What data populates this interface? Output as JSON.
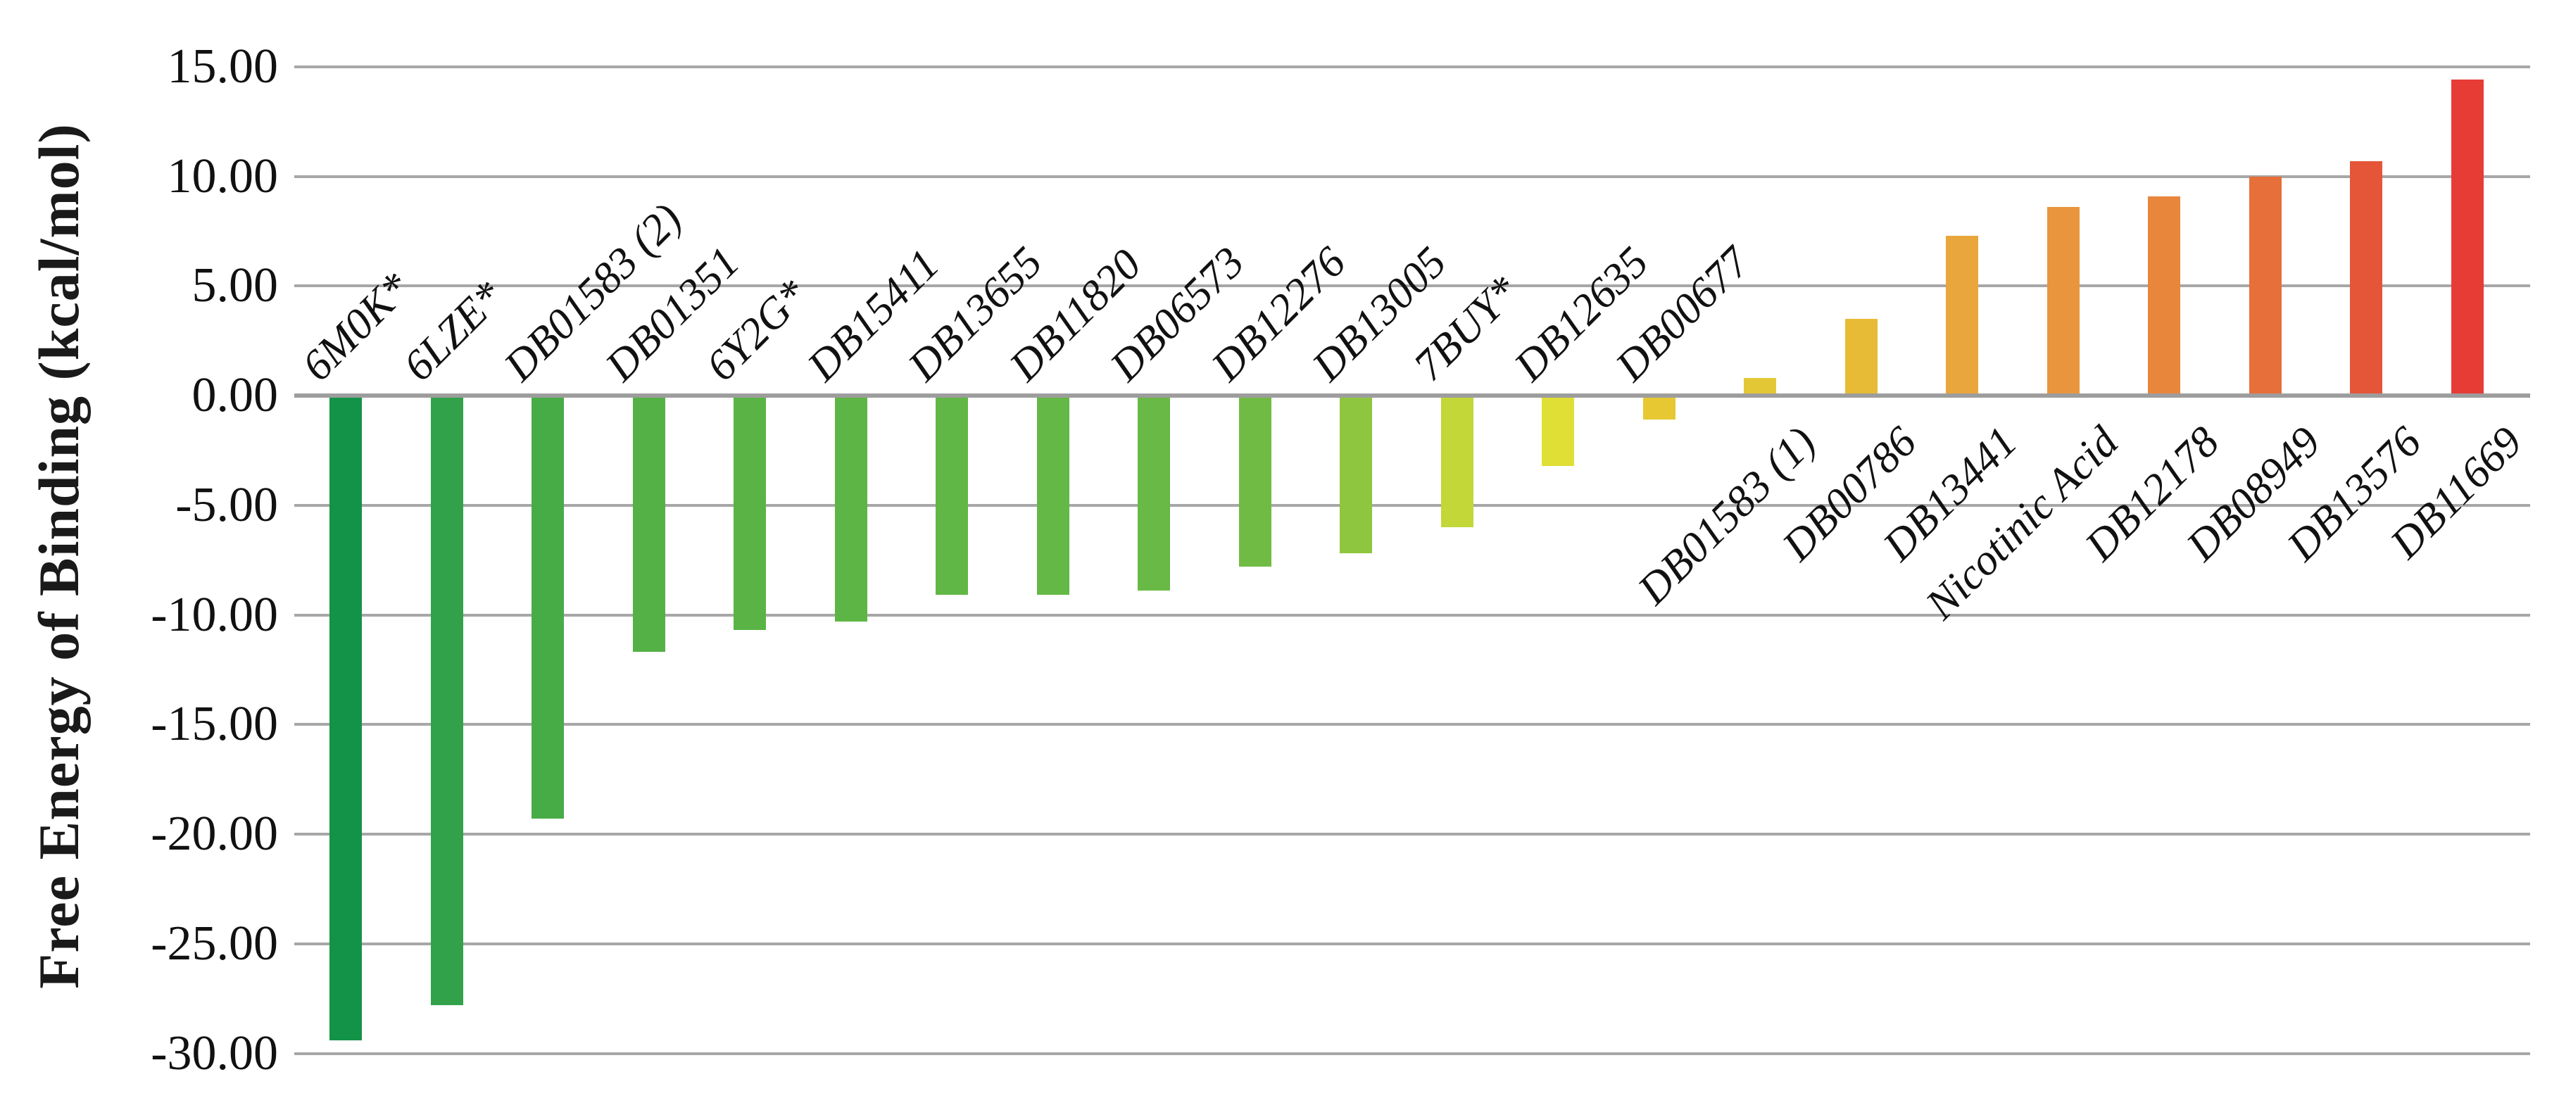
{
  "chart_data": {
    "type": "bar",
    "title": "",
    "xlabel": "",
    "ylabel": "Free Energy of Binding (kcal/mol)",
    "ylim": [
      -30,
      15
    ],
    "ytick_step": 5,
    "ytick_labels": [
      "15.00",
      "10.00",
      "5.00",
      "0.00",
      "-5.00",
      "-10.00",
      "-15.00",
      "-20.00",
      "-25.00",
      "-30.00"
    ],
    "ytick_values": [
      15,
      10,
      5,
      0,
      -5,
      -10,
      -15,
      -20,
      -25,
      -30
    ],
    "grid": "horizontal-gridlines-on",
    "legend": "none",
    "background_color": "#FFFFFF",
    "gridline_color": "#A7A7A7",
    "categories": [
      "6M0K*",
      "6LZE*",
      "DB01583 (2)",
      "DB01351",
      "6Y2G*",
      "DB15411",
      "DB13655",
      "DB11820",
      "DB06573",
      "DB12276",
      "DB13005",
      "7BUY*",
      "DB12635",
      "DB00677",
      "DB01583 (1)",
      "DB00786",
      "DB13441",
      "Nicotinic Acid",
      "DB12178",
      "DB08949",
      "DB13576",
      "DB11669"
    ],
    "values": [
      -29.4,
      -27.8,
      -19.3,
      -11.7,
      -10.7,
      -10.3,
      -9.1,
      -9.1,
      -8.9,
      -7.8,
      -7.2,
      -6.0,
      -3.2,
      -1.1,
      0.8,
      3.5,
      7.3,
      8.6,
      9.1,
      10.0,
      10.7,
      14.4
    ],
    "bar_colors": [
      "#129347",
      "#31A24A",
      "#48AC46",
      "#53B145",
      "#59B445",
      "#5DB545",
      "#61B745",
      "#64B845",
      "#68B945",
      "#70BB44",
      "#8FC63F",
      "#C3D739",
      "#DFDF35",
      "#E7C832",
      "#E4C735",
      "#E7BB36",
      "#E9A63C",
      "#E8953E",
      "#E8863C",
      "#E66F3A",
      "#E55638",
      "#E63C35"
    ],
    "label_color": "#111111",
    "units": "kcal/mol"
  },
  "layout_note": "vertical bar chart, diverging values around zero axis, category labels rotated 45 degrees"
}
